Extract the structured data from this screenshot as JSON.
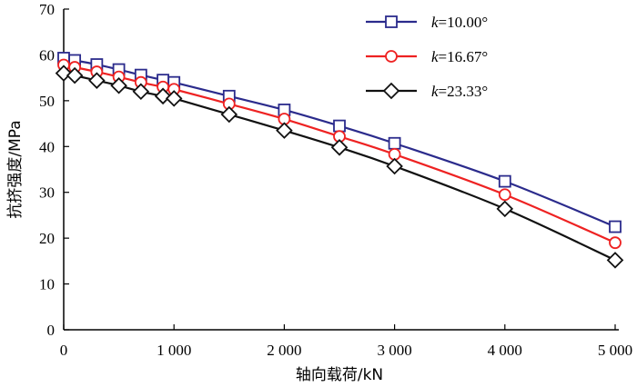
{
  "chart_data": {
    "type": "line",
    "title": "",
    "xlabel": "轴向载荷/kN",
    "ylabel": "抗挤强度/MPa",
    "xlim": [
      0,
      5000
    ],
    "ylim": [
      0,
      70
    ],
    "xticks": [
      0,
      1000,
      2000,
      3000,
      4000,
      5000
    ],
    "xtick_labels": [
      "0",
      "1 000",
      "2 000",
      "3 000",
      "4 000",
      "5 000"
    ],
    "yticks": [
      0,
      10,
      20,
      30,
      40,
      50,
      60,
      70
    ],
    "ytick_labels": [
      "0",
      "10",
      "20",
      "30",
      "40",
      "50",
      "60",
      "70"
    ],
    "legend_position": "top-right",
    "x": [
      0,
      100,
      300,
      500,
      700,
      900,
      1000,
      1500,
      2000,
      2500,
      3000,
      4000,
      5000
    ],
    "series": [
      {
        "name": "k=10.00°",
        "name_italic": "k",
        "name_rest": "=10.00°",
        "color": "#2b2b8c",
        "marker": "square",
        "values": [
          59.3,
          58.8,
          57.9,
          56.8,
          55.6,
          54.5,
          54.0,
          51.0,
          48.0,
          44.5,
          40.7,
          32.4,
          22.5
        ]
      },
      {
        "name": "k=16.67°",
        "name_italic": "k",
        "name_rest": "=16.67°",
        "color": "#ee2222",
        "marker": "circle",
        "values": [
          57.8,
          57.3,
          56.3,
          55.2,
          54.0,
          53.0,
          52.5,
          49.3,
          46.0,
          42.2,
          38.3,
          29.5,
          19.0
        ]
      },
      {
        "name": "k=23.33°",
        "name_italic": "k",
        "name_rest": "=23.33°",
        "color": "#111111",
        "marker": "diamond",
        "values": [
          56.0,
          55.5,
          54.4,
          53.3,
          52.0,
          51.0,
          50.5,
          47.0,
          43.5,
          39.8,
          35.7,
          26.4,
          15.2
        ]
      }
    ]
  }
}
